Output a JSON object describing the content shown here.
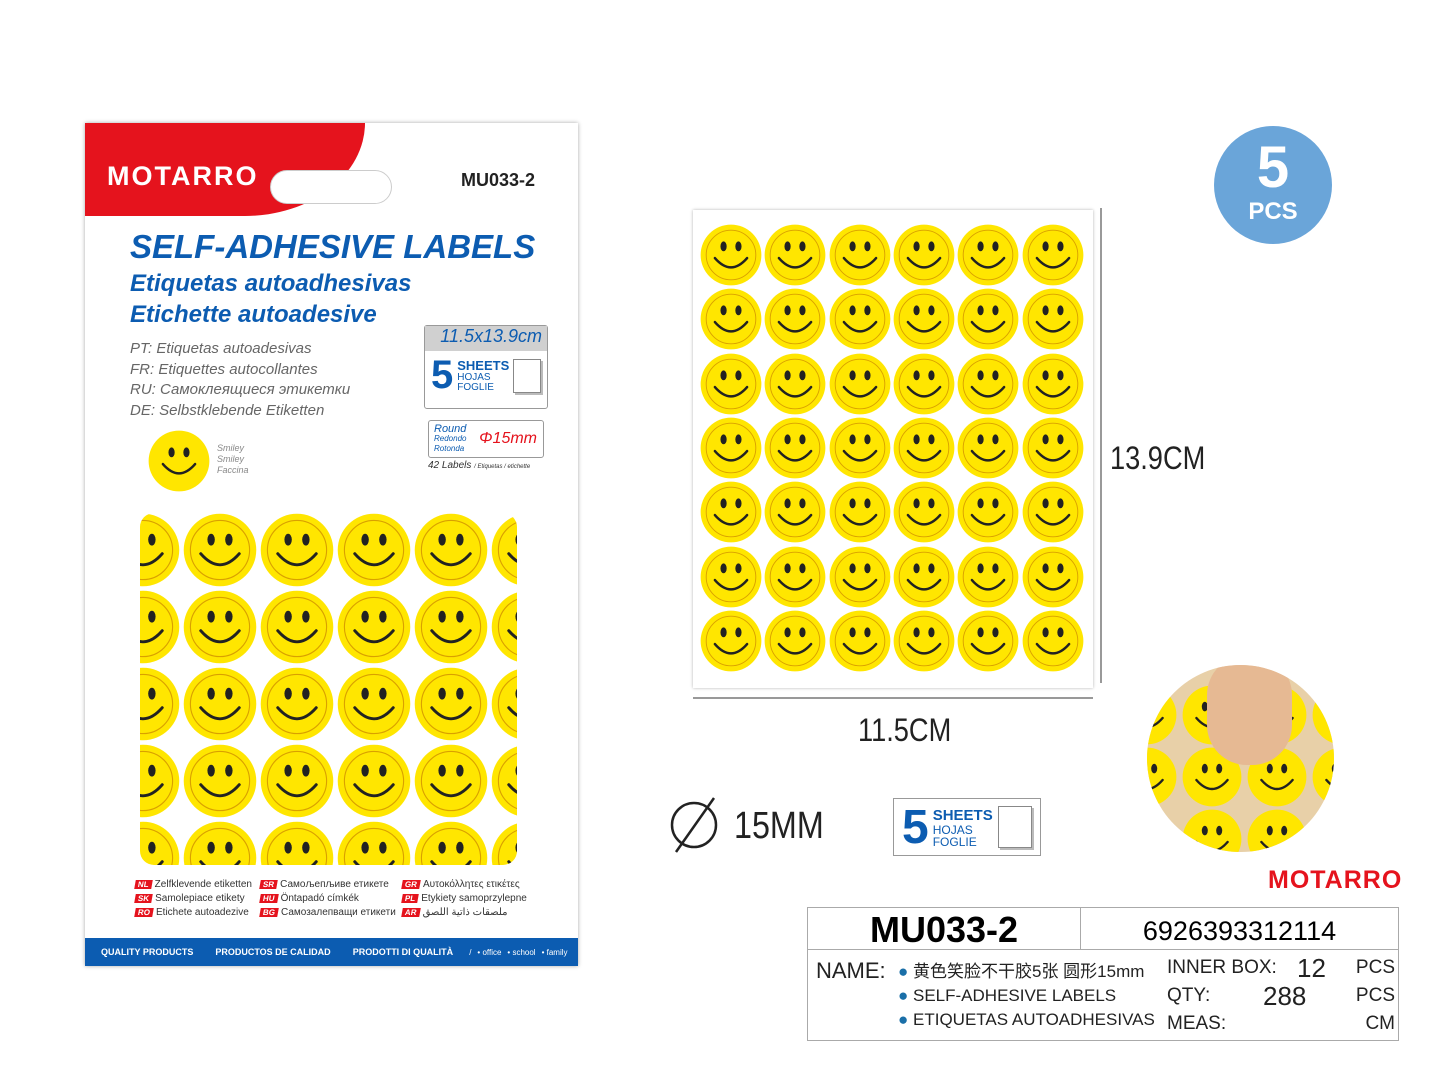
{
  "package": {
    "brand": "MOTARRO",
    "code": "MU033-2",
    "title_en": "SELF-ADHESIVE LABELS",
    "title_es": "Etiquetas autoadhesivas",
    "title_it": "Etichette autoadesive",
    "languages": [
      "PT: Etiquetas autoadesivas",
      "FR: Etiquettes autocollantes",
      "RU: Самоклеящиеся этикетки",
      "DE: Selbstklebende Etiketten"
    ],
    "design_names": [
      "Smiley",
      "Smiley",
      "Faccina"
    ],
    "size": "11.5x13.9cm",
    "sheets_count": "5",
    "sheets_labels": [
      "SHEETS",
      "HOJAS",
      "FOGLIE"
    ],
    "shape_labels": [
      "Round",
      "Redondo",
      "Rotonda"
    ],
    "diameter": "Φ15mm",
    "labels_count": "42 Labels",
    "labels_suffix": "/ Etiquetas / etichette",
    "more_languages": [
      {
        "code": "NL",
        "text": "Zelfklevende etiketten"
      },
      {
        "code": "SR",
        "text": "Самољепљиве етикете"
      },
      {
        "code": "GR",
        "text": "Αυτοκόλλητες ετικέτες"
      },
      {
        "code": "SK",
        "text": "Samolepiace etikety"
      },
      {
        "code": "HU",
        "text": "Öntapadó címkék"
      },
      {
        "code": "PL",
        "text": "Etykiety samoprzylepne"
      },
      {
        "code": "RO",
        "text": "Etichete autoadezive"
      },
      {
        "code": "BG",
        "text": "Самозалепващи етикети"
      },
      {
        "code": "AR",
        "text": "ملصقات ذاتية اللصق"
      }
    ],
    "footer": [
      "QUALITY PRODUCTS",
      "PRODUCTOS DE CALIDAD",
      "PRODOTTI DI QUALITÀ"
    ],
    "footer_tags": [
      "• office",
      "• school",
      "• family"
    ]
  },
  "sheet": {
    "rows": 7,
    "cols": 6,
    "height_label": "13.9CM",
    "width_label": "11.5CM"
  },
  "badge": {
    "count": "5",
    "unit": "PCS"
  },
  "diameter_label": "15MM",
  "sheets_box": {
    "count": "5",
    "labels": [
      "SHEETS",
      "HOJAS",
      "FOGLIE"
    ]
  },
  "brand_logo": "MOTARRO",
  "spec": {
    "code": "MU033-2",
    "barcode": "6926393312114",
    "name_label": "NAME:",
    "names": [
      "黄色笑脸不干胶5张 圆形15mm",
      "SELF-ADHESIVE LABELS",
      "ETIQUETAS AUTOADHESIVAS"
    ],
    "inner_box_label": "INNER BOX:",
    "inner_box_value": "12",
    "inner_box_unit": "PCS",
    "qty_label": "QTY:",
    "qty_value": "288",
    "qty_unit": "PCS",
    "meas_label": "MEAS:",
    "meas_unit": "CM"
  },
  "colors": {
    "red": "#e5131d",
    "blue": "#0c5cb1",
    "yellow": "#ffe600",
    "badge": "#6aa5d9"
  }
}
